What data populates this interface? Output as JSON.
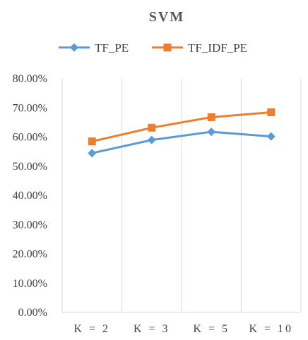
{
  "chart_data": {
    "type": "line",
    "title": "SVM",
    "xlabel": "",
    "ylabel": "",
    "categories": [
      "K = 2",
      "K = 3",
      "K = 5",
      "K = 10"
    ],
    "series": [
      {
        "name": "TF_PE",
        "values": [
          54.5,
          59.0,
          61.8,
          60.2
        ],
        "color": "#5b9bd5",
        "marker": "diamond"
      },
      {
        "name": "TF_IDF_PE",
        "values": [
          58.5,
          63.2,
          66.8,
          68.5
        ],
        "color": "#ed7d31",
        "marker": "square"
      }
    ],
    "ylim": [
      0,
      80
    ],
    "yticks": [
      "0.00%",
      "10.00%",
      "20.00%",
      "30.00%",
      "40.00%",
      "50.00%",
      "60.00%",
      "70.00%",
      "80.00%"
    ],
    "grid": "vertical",
    "legend": "top"
  }
}
